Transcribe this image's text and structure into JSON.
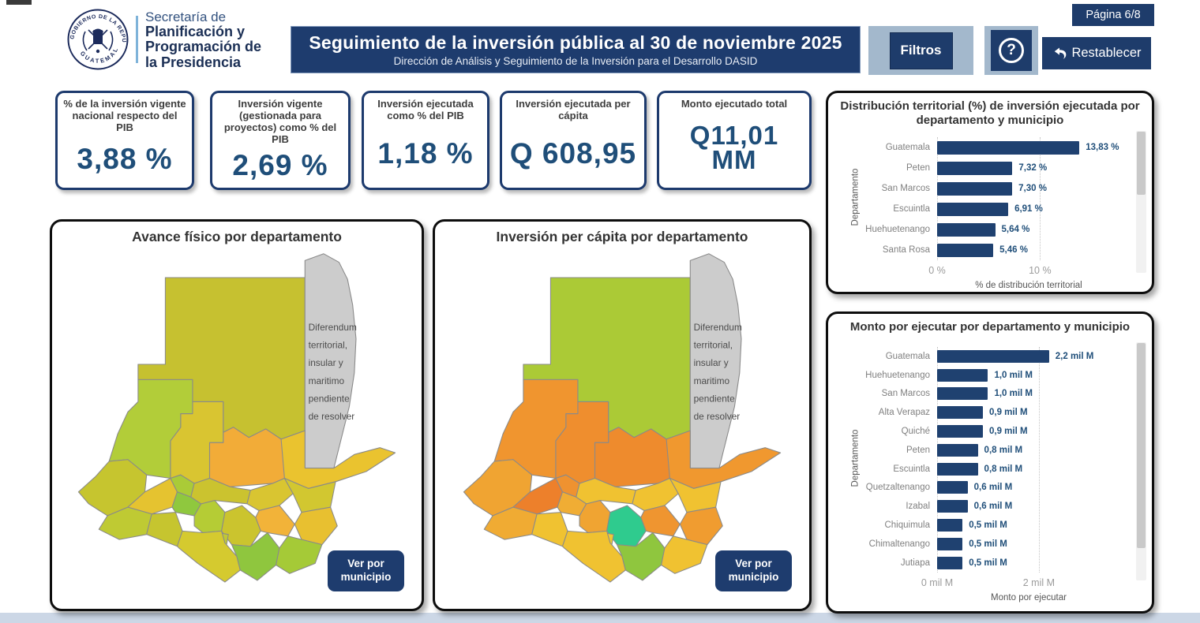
{
  "page": {
    "badge": "Página 6/8"
  },
  "header": {
    "seal_top": "GOBIERNO DE LA REPÚBLICA",
    "seal_bottom": "GUATEMALA",
    "org_line1": "Secretaría de",
    "org_line2": "Planificación y",
    "org_line3": "Programación de",
    "org_line4": "la Presidencia",
    "title": "Seguimiento de la inversión pública al 30 de noviembre 2025",
    "subtitle": "Dirección de Análisis y Seguimiento de la Inversión para el Desarrollo DASID",
    "filters_label": "Filtros",
    "help_label": "?",
    "reset_label": "Restablecer"
  },
  "kpis": [
    {
      "title": "% de la inversión vigente nacional respecto del PIB",
      "value": "3,88 %"
    },
    {
      "title": "Inversión vigente (gestionada para proyectos) como % del PIB",
      "value": "2,69 %"
    },
    {
      "title": "Inversión ejecutada como % del PIB",
      "value": "1,18 %"
    },
    {
      "title": "Inversión ejecutada per cápita",
      "value": "Q 608,95"
    },
    {
      "title": "Monto ejecutado total",
      "value": "Q11,01\nMM"
    }
  ],
  "maps": [
    {
      "title": "Avance físico por departamento",
      "button_lines": [
        "Ver por",
        "municipio"
      ],
      "disclaimer": [
        "Diferendum",
        "territorial,",
        "insular y",
        "maritimo",
        "pendiente",
        "de resolver"
      ],
      "region_colors": {
        "peten": "#c6c130",
        "belize": "#cccccc",
        "izabal": "#eac32f",
        "alta_verapaz": "#f2ac38",
        "quiche": "#d9c531",
        "huehuetenango": "#b2cd39",
        "san_marcos": "#c6c52f",
        "quetzaltenango": "#e5c330",
        "totonicapan": "#aacb37",
        "solola": "#8fc83e",
        "retalhuleu": "#bfca33",
        "suchitepequez": "#c6c52f",
        "chimaltenango": "#b5cc35",
        "baja_verapaz": "#cbc32f",
        "el_progreso": "#d9c531",
        "zacapa": "#d2c730",
        "chiquimula": "#e8c030",
        "jalapa": "#f2b339",
        "guatemala": "#cbc42e",
        "sacatepequez": "#c0c834",
        "escuintla": "#d5ca2f",
        "santa_rosa": "#8fc63e",
        "jutiapa": "#a5ca37"
      }
    },
    {
      "title": "Inversión per cápita por departamento",
      "button_lines": [
        "Ver por",
        "municipio"
      ],
      "disclaimer": [
        "Diferendum",
        "territorial,",
        "insular y",
        "maritimo",
        "pendiente",
        "de resolver"
      ],
      "region_colors": {
        "peten": "#abca36",
        "belize": "#cccccc",
        "izabal": "#f0982f",
        "alta_verapaz": "#ee8b2d",
        "quiche": "#ef8e2e",
        "huehuetenango": "#f0952f",
        "san_marcos": "#f0a432",
        "quetzaltenango": "#ed802b",
        "totonicapan": "#ef9230",
        "solola": "#f0ad34",
        "retalhuleu": "#f0ab33",
        "suchitepequez": "#f0c231",
        "chimaltenango": "#f0a432",
        "baja_verapaz": "#f0c231",
        "el_progreso": "#f0c231",
        "zacapa": "#f0c231",
        "chiquimula": "#f09c30",
        "jalapa": "#ef9530",
        "guatemala": "#2fcb8e",
        "sacatepequez": "#eecb32",
        "escuintla": "#f0c231",
        "santa_rosa": "#8fc63e",
        "jutiapa": "#f0c231"
      }
    }
  ],
  "chart_data": [
    {
      "type": "bar",
      "orientation": "horizontal",
      "title": "Distribución territorial (%) de inversión ejecutada por departamento y municipio",
      "categories": [
        "Guatemala",
        "Peten",
        "San Marcos",
        "Escuintla",
        "Huehuetenango",
        "Santa Rosa"
      ],
      "values": [
        13.83,
        7.32,
        7.3,
        6.91,
        5.64,
        5.46
      ],
      "value_labels": [
        "13,83 %",
        "7,32 %",
        "7,30 %",
        "6,91 %",
        "5,64 %",
        "5,46 %"
      ],
      "xlabel": "% de distribución territorial",
      "ylabel": "Departamento",
      "xlim": [
        0,
        17.8
      ],
      "x_ticks": [
        {
          "value": 0,
          "label": "0 %"
        },
        {
          "value": 10,
          "label": "10 %"
        }
      ],
      "bar_color": "#1f4170",
      "legend": "none",
      "grid": "dotted-vertical"
    },
    {
      "type": "bar",
      "orientation": "horizontal",
      "title": "Monto por ejecutar por departamento y municipio",
      "categories": [
        "Guatemala",
        "Huehuetenango",
        "San Marcos",
        "Alta Verapaz",
        "Quiché",
        "Peten",
        "Escuintla",
        "Quetzaltenango",
        "Izabal",
        "Chiquimula",
        "Chimaltenango",
        "Jutiapa"
      ],
      "values": [
        2.2,
        1.0,
        1.0,
        0.9,
        0.9,
        0.8,
        0.8,
        0.6,
        0.6,
        0.5,
        0.5,
        0.5
      ],
      "value_labels": [
        "2,2 mil M",
        "1,0 mil M",
        "1,0 mil M",
        "0,9 mil M",
        "0,9 mil M",
        "0,8 mil M",
        "0,8 mil M",
        "0,6 mil M",
        "0,6 mil M",
        "0,5 mil M",
        "0,5 mil M",
        "0,5 mil M"
      ],
      "xlabel": "Monto por ejecutar",
      "ylabel": "Departamento",
      "xlim": [
        0,
        3.6
      ],
      "x_ticks": [
        {
          "value": 0,
          "label": "0 mil M"
        },
        {
          "value": 2,
          "label": "2 mil M"
        }
      ],
      "bar_color": "#1f4170",
      "legend": "none",
      "grid": "dotted-vertical"
    }
  ]
}
